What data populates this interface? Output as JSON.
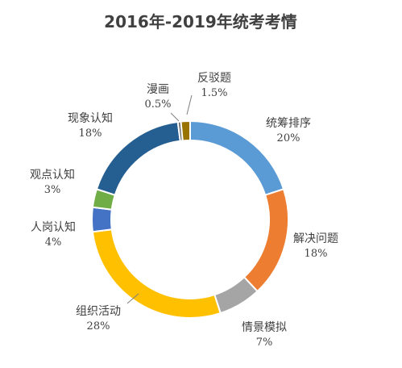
{
  "chart_data": {
    "type": "pie",
    "donut": true,
    "title": "2016年-2019年统考考情",
    "slices": [
      {
        "name": "统筹排序",
        "value": 20,
        "label": "20%",
        "color": "#5B9BD5"
      },
      {
        "name": "解决问题",
        "value": 18,
        "label": "18%",
        "color": "#ED7D31"
      },
      {
        "name": "情景模拟",
        "value": 7,
        "label": "7%",
        "color": "#A5A5A5"
      },
      {
        "name": "组织活动",
        "value": 28,
        "label": "28%",
        "color": "#FFC000"
      },
      {
        "name": "人岗认知",
        "value": 4,
        "label": "4%",
        "color": "#4472C4"
      },
      {
        "name": "观点认知",
        "value": 3,
        "label": "3%",
        "color": "#70AD47"
      },
      {
        "name": "现象认知",
        "value": 18,
        "label": "18%",
        "color": "#255E91"
      },
      {
        "name": "漫画",
        "value": 0.5,
        "label": "0.5%",
        "color": "#636363"
      },
      {
        "name": "反驳题",
        "value": 1.5,
        "label": "1.5%",
        "color": "#997300"
      }
    ]
  }
}
